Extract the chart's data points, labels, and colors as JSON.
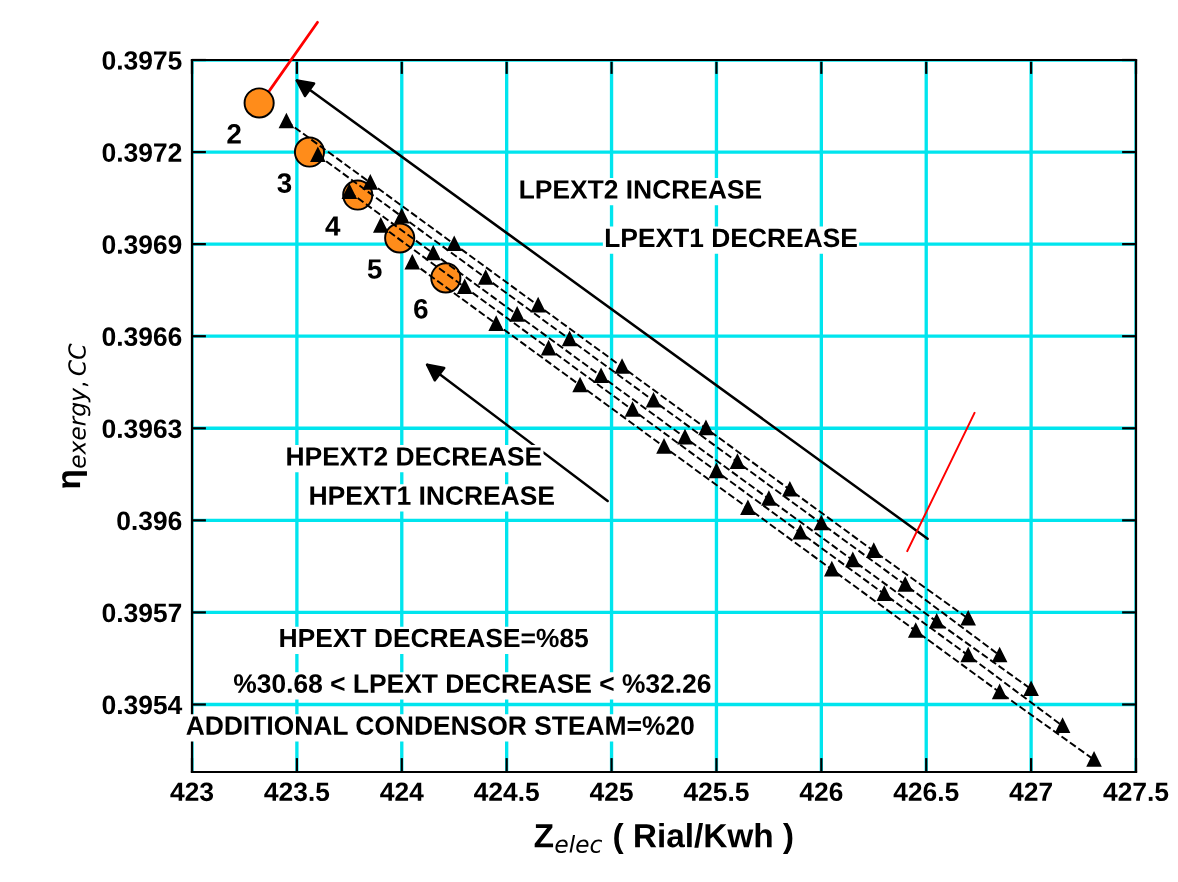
{
  "chart_data": {
    "type": "line",
    "xlabel": "Z$_{elec}$ ( Rial/Kwh )",
    "ylabel": "η$_{exergy,CC}$",
    "xlim": [
      423,
      427.5
    ],
    "ylim": [
      0.39518,
      0.3975
    ],
    "xticks": [
      423,
      423.5,
      424,
      424.5,
      425,
      425.5,
      426,
      426.5,
      427,
      427.5
    ],
    "yticks": [
      0.3954,
      0.3957,
      0.396,
      0.3963,
      0.3966,
      0.3969,
      0.3972,
      0.3975
    ],
    "grid": true,
    "marker": "triangle",
    "line_style": "dashed",
    "series": [
      {
        "color": "#000000",
        "x": [
          423.45,
          423.85,
          424.25,
          424.65,
          425.05,
          425.45,
          425.85,
          426.25,
          426.7
        ],
        "values": [
          0.3973,
          0.3971,
          0.3969,
          0.3967,
          0.3965,
          0.3963,
          0.3961,
          0.3959,
          0.39568
        ]
      },
      {
        "color": "#000000",
        "x": [
          423.6,
          424.0,
          424.4,
          424.8,
          425.2,
          425.6,
          426.0,
          426.4,
          426.85
        ],
        "values": [
          0.39719,
          0.39699,
          0.39679,
          0.39659,
          0.39639,
          0.39619,
          0.39599,
          0.39579,
          0.39556
        ]
      },
      {
        "color": "#000000",
        "x": [
          423.75,
          424.15,
          424.55,
          424.95,
          425.35,
          425.75,
          426.15,
          426.55,
          427.0
        ],
        "values": [
          0.39707,
          0.39687,
          0.39667,
          0.39647,
          0.39627,
          0.39607,
          0.39587,
          0.39567,
          0.39545
        ]
      },
      {
        "color": "#000000",
        "x": [
          423.9,
          424.3,
          424.7,
          425.1,
          425.5,
          425.9,
          426.3,
          426.7,
          427.15
        ],
        "values": [
          0.39696,
          0.39676,
          0.39656,
          0.39636,
          0.39616,
          0.39596,
          0.39576,
          0.39556,
          0.39533
        ]
      },
      {
        "color": "#000000",
        "x": [
          424.05,
          424.45,
          424.85,
          425.25,
          425.65,
          426.05,
          426.45,
          426.85,
          427.3
        ],
        "values": [
          0.39684,
          0.39664,
          0.39644,
          0.39624,
          0.39604,
          0.39584,
          0.39564,
          0.39544,
          0.39522
        ]
      },
      {
        "type": "scatter",
        "marker": "circle",
        "color": "#ff8c1a",
        "x": [
          423.32,
          423.56,
          423.79,
          423.99,
          424.21
        ],
        "values": [
          0.39736,
          0.3972,
          0.39706,
          0.39692,
          0.39679
        ]
      },
      {
        "color": "#ff0000",
        "marker": "none",
        "line_style": "solid",
        "x": [
          426.41,
          426.73
        ],
        "values": [
          0.3959,
          0.39635
        ]
      }
    ],
    "annotations": [
      {
        "text": "2",
        "x": 423.32,
        "y": 0.39736
      },
      {
        "text": "3",
        "x": 423.56,
        "y": 0.3972
      },
      {
        "text": "4",
        "x": 423.79,
        "y": 0.39706
      },
      {
        "text": "5",
        "x": 423.99,
        "y": 0.39692
      },
      {
        "text": "6",
        "x": 424.21,
        "y": 0.39679
      },
      "LPEXT2 INCREASE",
      "LPEXT1 DECREASE",
      "HPEXT2 DECREASE",
      "HPEXT1 INCREASE",
      "HPEXT DECREASE=%85",
      "%30.68 < LPEXT DECREASE < %32.26",
      "ADDITIONAL CONDENSOR STEAM=%20"
    ]
  }
}
